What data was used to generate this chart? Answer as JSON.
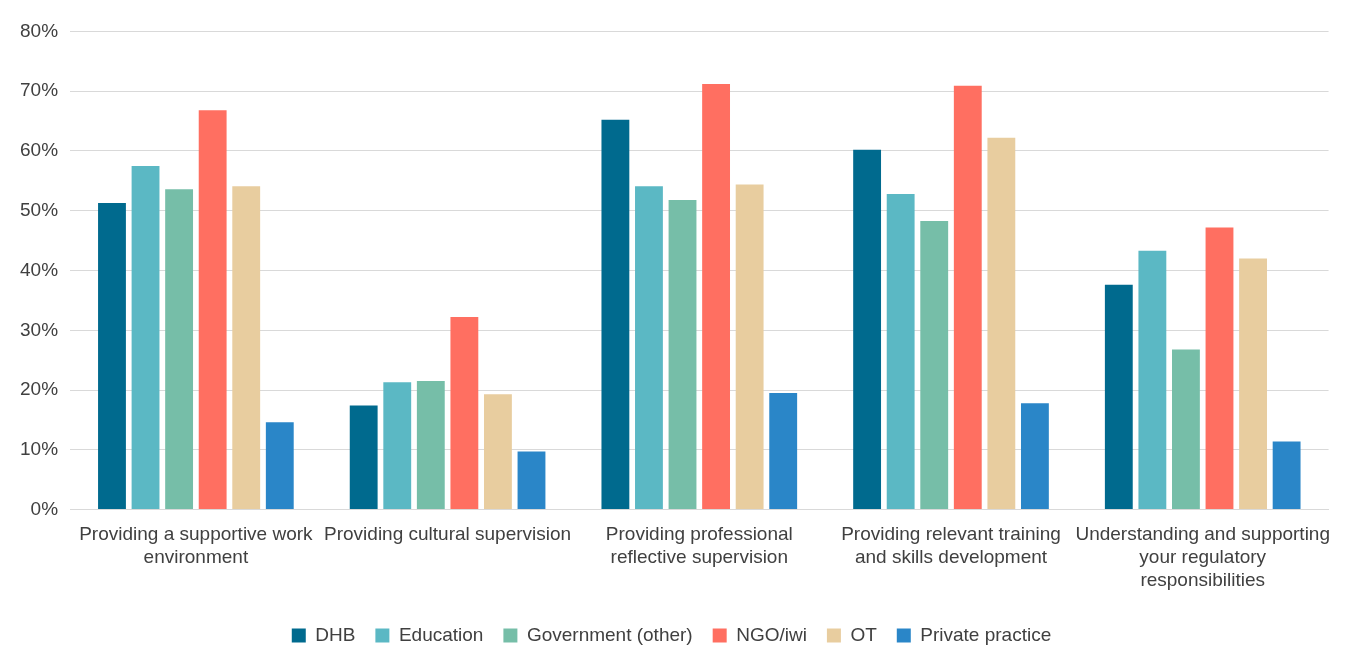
{
  "chart_data": {
    "type": "bar",
    "categories": [
      "Providing a supportive work environment",
      "Providing cultural supervision",
      "Providing professional reflective supervision",
      "Providing relevant training and skills development",
      "Understanding and supporting your regulatory responsibilities"
    ],
    "series": [
      {
        "name": "DHB",
        "color": "#006a8e",
        "values": [
          51.3,
          17.4,
          65.2,
          60.2,
          37.6
        ]
      },
      {
        "name": "Education",
        "color": "#5bb8c4",
        "values": [
          57.5,
          21.3,
          54.1,
          52.8,
          43.3
        ]
      },
      {
        "name": "Government (other)",
        "color": "#76bea8",
        "values": [
          53.6,
          21.5,
          51.8,
          48.3,
          26.8
        ]
      },
      {
        "name": "NGO/iwi",
        "color": "#ff6f61",
        "values": [
          66.8,
          32.2,
          71.2,
          70.9,
          47.2
        ]
      },
      {
        "name": "OT",
        "color": "#e8cd9f",
        "values": [
          54.1,
          19.3,
          54.4,
          62.2,
          42.0
        ]
      },
      {
        "name": "Private practice",
        "color": "#2a86c8",
        "values": [
          14.6,
          9.7,
          19.5,
          17.8,
          11.4
        ]
      }
    ],
    "ylim": [
      0,
      80
    ],
    "yticks": [
      {
        "value": 0,
        "label": "0%"
      },
      {
        "value": 10,
        "label": "10%"
      },
      {
        "value": 20,
        "label": "20%"
      },
      {
        "value": 30,
        "label": "30%"
      },
      {
        "value": 40,
        "label": "40%"
      },
      {
        "value": 50,
        "label": "50%"
      },
      {
        "value": 60,
        "label": "60%"
      },
      {
        "value": 70,
        "label": "70%"
      },
      {
        "value": 80,
        "label": "80%"
      }
    ],
    "grid": "y",
    "legend": "bottom"
  }
}
